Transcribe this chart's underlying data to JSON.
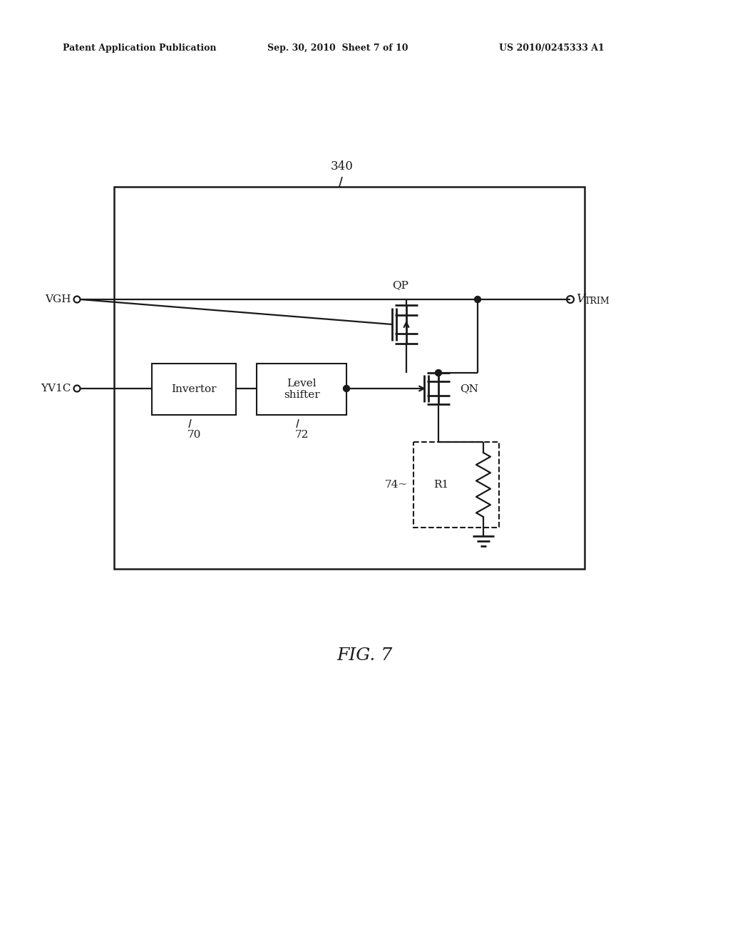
{
  "bg_color": "#ffffff",
  "line_color": "#1a1a1a",
  "fig_width": 10.24,
  "fig_height": 13.2,
  "header_left": "Patent Application Publication",
  "header_center": "Sep. 30, 2010  Sheet 7 of 10",
  "header_right": "US 2010/0245333 A1",
  "fig_label": "FIG. 7",
  "label_340": "340",
  "label_70": "70",
  "label_72": "72",
  "label_74": "74~",
  "label_R1": "R1",
  "label_QP": "QP",
  "label_QN": "QN",
  "label_VGH": "VGH",
  "label_VTRIM": "V",
  "label_VTRIM_sub": "TRIM",
  "label_YV1C": "YV1C",
  "label_invertor": "Invertor",
  "label_level_shifter": "Level\nshifter"
}
